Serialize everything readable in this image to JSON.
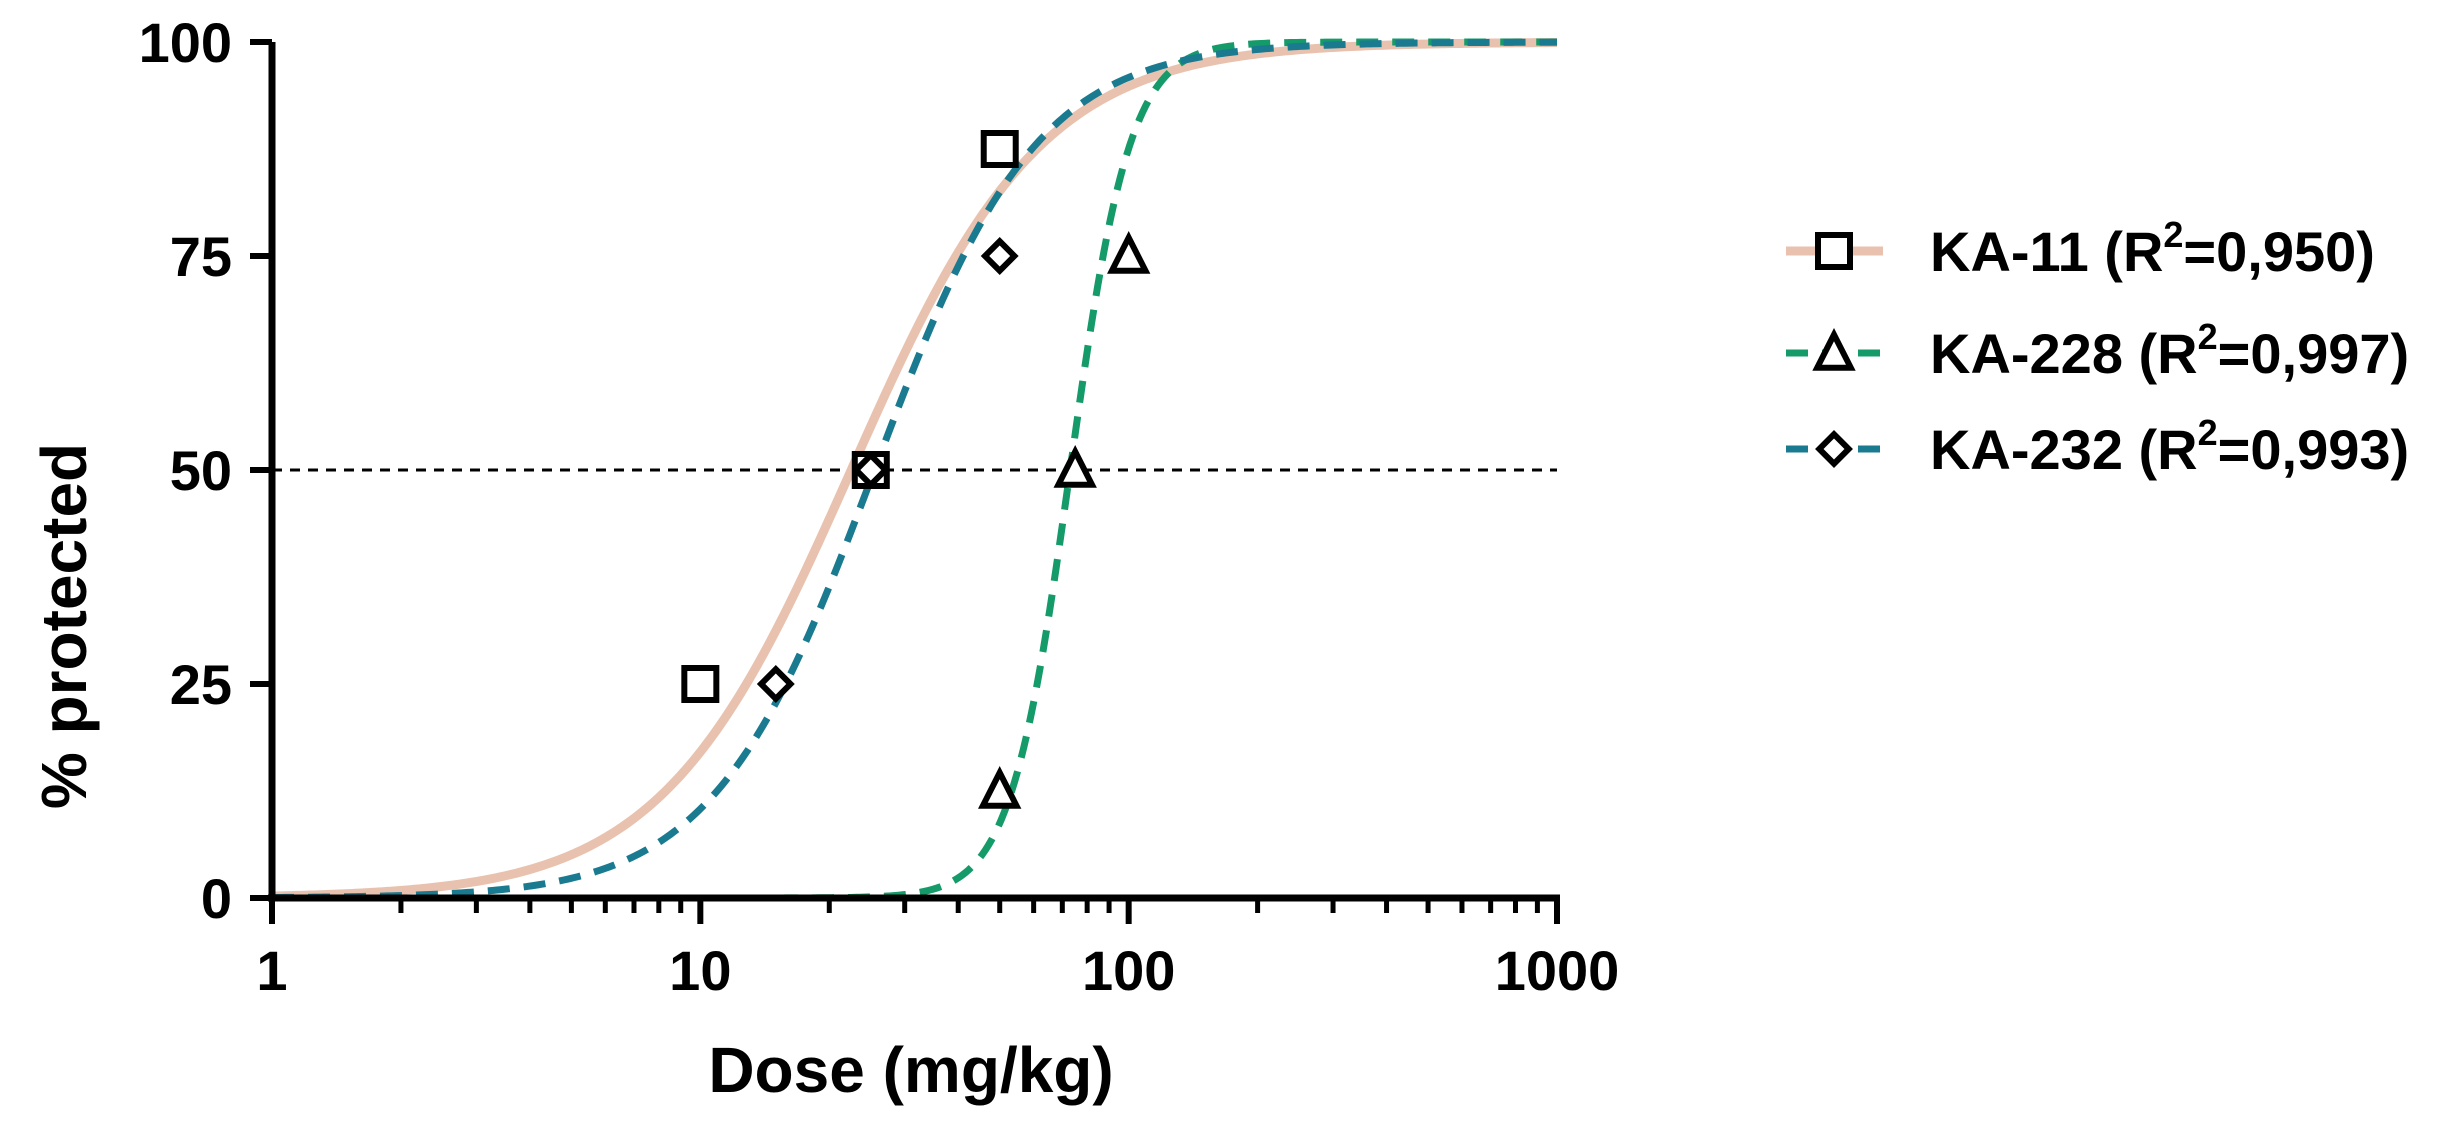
{
  "chart_data": {
    "type": "scatter",
    "title": "",
    "xlabel": "Dose (mg/kg)",
    "ylabel": "% protected",
    "xscale": "log",
    "xlim": [
      1,
      1000
    ],
    "ylim": [
      0,
      100
    ],
    "x_ticks": [
      1,
      10,
      100,
      1000
    ],
    "x_tick_labels": [
      "1",
      "10",
      "100",
      "1000"
    ],
    "y_ticks": [
      0,
      25,
      50,
      75,
      100
    ],
    "y_tick_labels": [
      "0",
      "25",
      "50",
      "75",
      "100"
    ],
    "reference_line": {
      "y": 50,
      "style": "dashed",
      "color": "#000000"
    },
    "legend_position": "right",
    "series": [
      {
        "name": "KA-11",
        "label_prefix": "KA-11 (R",
        "label_sup": "2",
        "label_suffix": "=0,950)",
        "marker": "square",
        "line_style": "solid",
        "color": "#e8c2ae",
        "ed50": 22.5,
        "hill": 1.95,
        "points": [
          {
            "x": 10,
            "y": 25
          },
          {
            "x": 25,
            "y": 50
          },
          {
            "x": 50,
            "y": 87.5
          }
        ]
      },
      {
        "name": "KA-228",
        "label_prefix": "KA-228 (R",
        "label_sup": "2",
        "label_suffix": "=0,997)",
        "marker": "triangle",
        "line_style": "dashed",
        "color": "#159a6a",
        "ed50": 73,
        "hill": 6.2,
        "points": [
          {
            "x": 50,
            "y": 12.5
          },
          {
            "x": 75,
            "y": 50
          },
          {
            "x": 100,
            "y": 75
          }
        ]
      },
      {
        "name": "KA-232",
        "label_prefix": "KA-232 (R",
        "label_sup": "2",
        "label_suffix": "=0,993)",
        "marker": "diamond",
        "line_style": "dashed",
        "color": "#1a7a90",
        "ed50": 25.5,
        "hill": 2.3,
        "points": [
          {
            "x": 15,
            "y": 25
          },
          {
            "x": 25,
            "y": 50
          },
          {
            "x": 50,
            "y": 75
          }
        ]
      }
    ]
  }
}
